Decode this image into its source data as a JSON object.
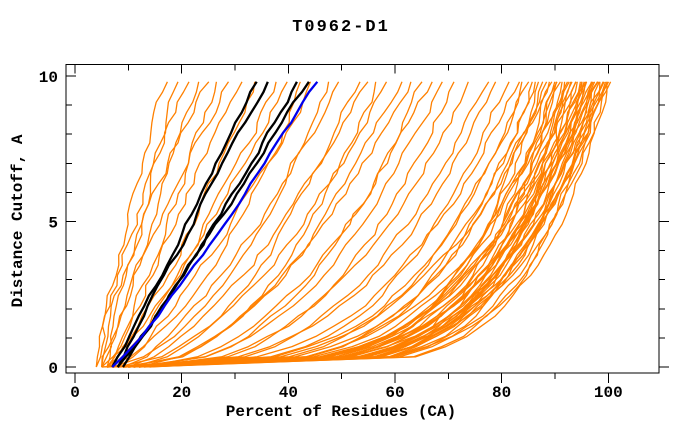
{
  "title": "T0962-D1",
  "colors": {
    "background": "#ffffff",
    "frame": "#000000",
    "orange": "#ff8000",
    "black": "#000000",
    "blue": "#0000ee"
  },
  "chart_data": {
    "type": "line",
    "title": "T0962-D1",
    "xlabel": "Percent of Residues (CA)",
    "ylabel": "Distance Cutoff, A",
    "xlim": [
      -1.7,
      109.5
    ],
    "ylim": [
      -0.2,
      10.4
    ],
    "x_major_ticks": [
      0,
      20,
      40,
      60,
      80,
      100
    ],
    "x_minor_step": 10,
    "y_major_ticks": [
      0,
      5,
      10
    ],
    "y_minor_step": 1,
    "grid": false,
    "legend": false,
    "y_data_max": 9.85,
    "curve_model": "x(y) = x0 + (xt - x0) * (y / 9.85)^b ; y = distance cutoff in Angstroms, x = percent of residues (CA). Each curve encoded as [x0, xt, b].",
    "series": [
      {
        "name": "model-curves-orange",
        "color_key": "orange",
        "stroke_width": 1.3,
        "jitter": 1.1,
        "curves": [
          [
            4,
            17,
            1.15
          ],
          [
            5,
            19,
            0.95
          ],
          [
            4,
            21,
            1.25
          ],
          [
            6,
            23,
            1.0
          ],
          [
            5,
            25,
            1.35
          ],
          [
            6,
            27,
            0.9
          ],
          [
            5,
            29,
            1.2
          ],
          [
            7,
            31,
            1.05
          ],
          [
            6,
            34,
            0.8
          ],
          [
            5,
            38,
            0.75
          ],
          [
            7,
            40,
            0.85
          ],
          [
            6,
            43,
            0.6
          ],
          [
            8,
            45,
            0.8
          ],
          [
            7,
            48,
            0.55
          ],
          [
            9,
            50,
            0.7
          ],
          [
            8,
            53,
            0.5
          ],
          [
            10,
            55,
            0.65
          ],
          [
            9,
            57,
            0.45
          ],
          [
            11,
            59,
            0.6
          ],
          [
            10,
            61,
            0.5
          ],
          [
            12,
            63,
            0.55
          ],
          [
            11,
            65,
            0.42
          ],
          [
            13,
            67,
            0.5
          ],
          [
            12,
            69,
            0.45
          ],
          [
            14,
            71,
            0.4
          ],
          [
            13,
            74,
            0.42
          ],
          [
            14,
            77,
            0.38
          ],
          [
            9,
            79,
            0.35
          ],
          [
            11,
            81,
            0.3
          ],
          [
            10,
            83,
            0.33
          ],
          [
            12,
            84,
            0.28
          ],
          [
            11,
            85,
            0.3
          ],
          [
            13,
            86,
            0.26
          ],
          [
            5,
            86,
            0.22
          ],
          [
            7,
            87,
            0.18
          ],
          [
            6,
            88,
            0.25
          ],
          [
            8,
            88,
            0.2
          ],
          [
            9,
            89,
            0.17
          ],
          [
            6,
            89,
            0.28
          ],
          [
            7,
            90,
            0.21
          ],
          [
            10,
            90,
            0.16
          ],
          [
            8,
            91,
            0.24
          ],
          [
            5,
            91,
            0.19
          ],
          [
            9,
            92,
            0.22
          ],
          [
            11,
            92,
            0.17
          ],
          [
            7,
            92,
            0.26
          ],
          [
            8,
            93,
            0.2
          ],
          [
            10,
            93,
            0.16
          ],
          [
            6,
            93,
            0.23
          ],
          [
            9,
            94,
            0.19
          ],
          [
            11,
            94,
            0.25
          ],
          [
            7,
            94,
            0.17
          ],
          [
            8,
            95,
            0.22
          ],
          [
            10,
            95,
            0.18
          ],
          [
            12,
            95,
            0.26
          ],
          [
            6,
            95,
            0.2
          ],
          [
            9,
            96,
            0.16
          ],
          [
            11,
            96,
            0.23
          ],
          [
            7,
            96,
            0.19
          ],
          [
            10,
            97,
            0.21
          ],
          [
            8,
            97,
            0.17
          ],
          [
            12,
            97,
            0.24
          ],
          [
            9,
            97,
            0.2
          ],
          [
            6,
            98,
            0.18
          ],
          [
            11,
            98,
            0.22
          ],
          [
            13,
            98,
            0.16
          ],
          [
            8,
            98,
            0.25
          ],
          [
            10,
            99,
            0.19
          ],
          [
            7,
            99,
            0.22
          ],
          [
            12,
            99,
            0.17
          ],
          [
            9,
            99,
            0.2
          ],
          [
            14,
            100,
            0.23
          ],
          [
            10,
            100,
            0.18
          ],
          [
            8,
            100,
            0.21
          ],
          [
            12,
            100,
            0.16
          ]
        ]
      },
      {
        "name": "reference-curves-black",
        "color_key": "black",
        "stroke_width": 2.3,
        "jitter": 0.7,
        "curves": [
          [
            7,
            34,
            0.95
          ],
          [
            8,
            36,
            1.0
          ],
          [
            8,
            42,
            0.9
          ],
          [
            9,
            44,
            1.0
          ]
        ]
      },
      {
        "name": "highlighted-curve-blue",
        "color_key": "blue",
        "stroke_width": 2.3,
        "jitter": 0.45,
        "curves": [
          [
            7,
            45.5,
            0.88
          ]
        ]
      }
    ]
  }
}
